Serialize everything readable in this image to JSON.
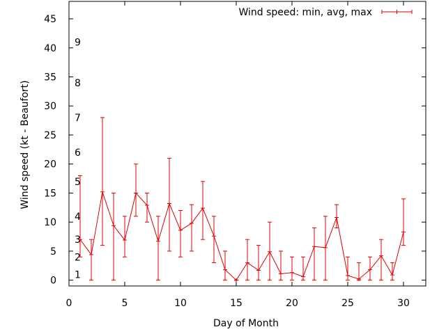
{
  "chart_data": {
    "type": "line",
    "title": "",
    "xlabel": "Day of Month",
    "ylabel": "Wind speed (kt - Beaufort)",
    "xlim": [
      0,
      32
    ],
    "ylim": [
      -1,
      48
    ],
    "xticks": [
      0,
      5,
      10,
      15,
      20,
      25,
      30
    ],
    "yticks": [
      0,
      5,
      10,
      15,
      20,
      25,
      30,
      35,
      40,
      45
    ],
    "grid": false,
    "legend_position": "top-right",
    "series": [
      {
        "name": "Wind speed: min, avg, max",
        "color": "#dd0000",
        "style": "line with error bars",
        "x": [
          1,
          2,
          3,
          4,
          5,
          6,
          7,
          8,
          9,
          10,
          11,
          12,
          13,
          14,
          15,
          16,
          17,
          18,
          19,
          20,
          21,
          22,
          23,
          24,
          25,
          26,
          27,
          28,
          29,
          30
        ],
        "avg": [
          7,
          4.4,
          15.2,
          9.4,
          6.9,
          15,
          12.9,
          6.7,
          13.2,
          8.6,
          9.8,
          12.4,
          7.6,
          1.8,
          0,
          3,
          1.7,
          4.9,
          1.1,
          1.3,
          0.6,
          5.8,
          5.6,
          10.8,
          0.8,
          0.2,
          1.8,
          4.2,
          0.9,
          8.3
        ],
        "min": [
          4,
          0,
          6,
          0,
          4,
          11,
          10,
          0,
          5,
          4,
          5,
          7,
          3,
          0,
          0,
          0,
          0,
          0,
          0,
          0,
          0,
          0,
          0,
          9,
          0,
          0,
          0,
          0,
          0,
          6
        ],
        "max": [
          18,
          7,
          28,
          15,
          11,
          20,
          15,
          11,
          21,
          12,
          13,
          17,
          11,
          5,
          0,
          7,
          6,
          10,
          5,
          4,
          4,
          9,
          11,
          13,
          4,
          3,
          4,
          7,
          3,
          14
        ]
      }
    ],
    "beaufort_annotations": [
      {
        "label": "1",
        "y": 1
      },
      {
        "label": "2",
        "y": 4
      },
      {
        "label": "3",
        "y": 7
      },
      {
        "label": "4",
        "y": 11
      },
      {
        "label": "5",
        "y": 17
      },
      {
        "label": "6",
        "y": 22
      },
      {
        "label": "7",
        "y": 28
      },
      {
        "label": "8",
        "y": 34
      },
      {
        "label": "9",
        "y": 41
      }
    ]
  }
}
